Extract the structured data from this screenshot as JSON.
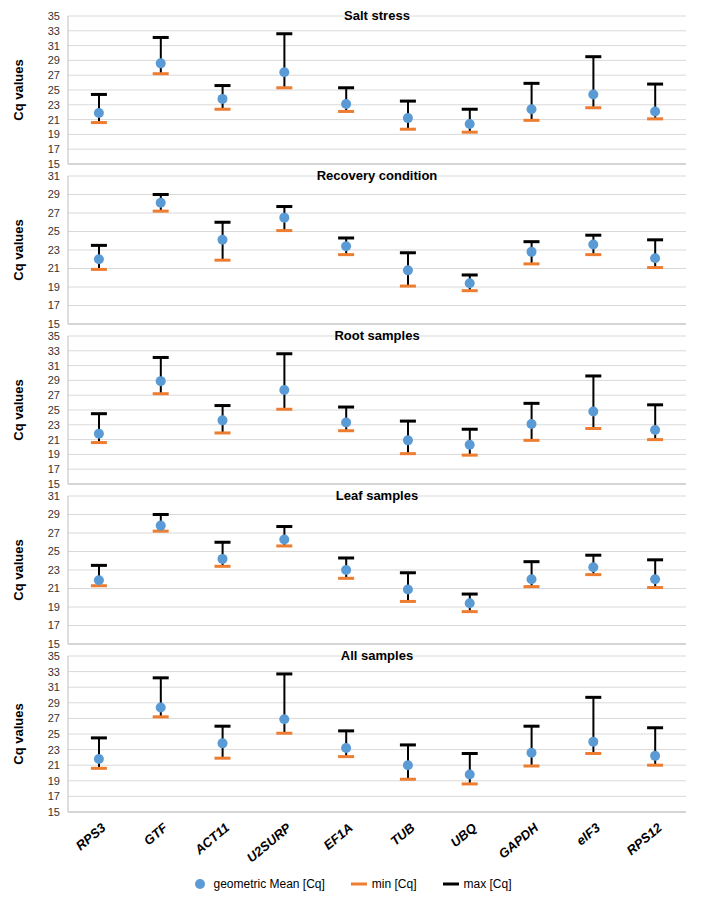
{
  "chart_data": [
    {
      "type": "scatter",
      "title": "Salt stress",
      "y_label": "Cq values",
      "categories": [
        "RPS3",
        "GTF",
        "ACT11",
        "U2SURP",
        "EF1A",
        "TUB",
        "UBQ",
        "GAPDH",
        "eIF3",
        "RPS12"
      ],
      "ylim": [
        15,
        35
      ],
      "yticks": [
        15,
        17,
        19,
        21,
        23,
        25,
        27,
        29,
        31,
        33,
        35
      ],
      "grid": true,
      "tick_labels": "y",
      "series": [
        {
          "name": "geometric Mean [Cq]",
          "color": "#5b9bd5",
          "marker": "circle",
          "values": [
            21.9,
            28.6,
            23.8,
            27.4,
            23.1,
            21.2,
            20.4,
            22.4,
            24.4,
            22.1
          ]
        },
        {
          "name": "min [Cq]",
          "color": "#ed7d31",
          "marker": "dash",
          "values": [
            20.6,
            27.2,
            22.4,
            25.3,
            22.1,
            19.7,
            19.3,
            20.9,
            22.6,
            21.1
          ]
        },
        {
          "name": "max [Cq]",
          "color": "#000000",
          "marker": "dash",
          "values": [
            24.4,
            32.1,
            25.6,
            32.6,
            25.3,
            23.5,
            22.4,
            25.9,
            29.5,
            25.8
          ]
        }
      ]
    },
    {
      "type": "scatter",
      "title": "Recovery condition",
      "y_label": "Cq values",
      "categories": [
        "RPS3",
        "GTF",
        "ACT11",
        "U2SURP",
        "EF1A",
        "TUB",
        "UBQ",
        "GAPDH",
        "eIF3",
        "RPS12"
      ],
      "ylim": [
        15,
        31
      ],
      "yticks": [
        15,
        17,
        19,
        21,
        23,
        25,
        27,
        29,
        31
      ],
      "grid": true,
      "tick_labels": "y",
      "series": [
        {
          "name": "geometric Mean [Cq]",
          "color": "#5b9bd5",
          "marker": "circle",
          "values": [
            22.0,
            28.1,
            24.1,
            26.5,
            23.4,
            20.8,
            19.4,
            22.8,
            23.6,
            22.1
          ]
        },
        {
          "name": "min [Cq]",
          "color": "#ed7d31",
          "marker": "dash",
          "values": [
            20.9,
            27.2,
            21.9,
            25.1,
            22.5,
            19.1,
            18.6,
            21.5,
            22.5,
            21.1
          ]
        },
        {
          "name": "max [Cq]",
          "color": "#000000",
          "marker": "dash",
          "values": [
            23.5,
            29.0,
            26.0,
            27.7,
            24.3,
            22.7,
            20.3,
            23.9,
            24.6,
            24.1
          ]
        }
      ]
    },
    {
      "type": "scatter",
      "title": "Root samples",
      "y_label": "Cq values",
      "categories": [
        "RPS3",
        "GTF",
        "ACT11",
        "U2SURP",
        "EF1A",
        "TUB",
        "UBQ",
        "GAPDH",
        "eIF3",
        "RPS12"
      ],
      "ylim": [
        15,
        35
      ],
      "yticks": [
        15,
        17,
        19,
        21,
        23,
        25,
        27,
        29,
        31,
        33,
        35
      ],
      "grid": true,
      "tick_labels": "y",
      "series": [
        {
          "name": "geometric Mean [Cq]",
          "color": "#5b9bd5",
          "marker": "circle",
          "values": [
            21.8,
            28.9,
            23.6,
            27.7,
            23.3,
            20.9,
            20.3,
            23.1,
            24.8,
            22.3
          ]
        },
        {
          "name": "min [Cq]",
          "color": "#ed7d31",
          "marker": "dash",
          "values": [
            20.6,
            27.2,
            21.9,
            25.1,
            22.2,
            19.1,
            18.9,
            20.9,
            22.5,
            21.0
          ]
        },
        {
          "name": "max [Cq]",
          "color": "#000000",
          "marker": "dash",
          "values": [
            24.5,
            32.1,
            25.6,
            32.6,
            25.4,
            23.5,
            22.4,
            25.9,
            29.6,
            25.7
          ]
        }
      ]
    },
    {
      "type": "scatter",
      "title": "Leaf  samples",
      "y_label": "Cq values",
      "categories": [
        "RPS3",
        "GTF",
        "ACT11",
        "U2SURP",
        "EF1A",
        "TUB",
        "UBQ",
        "GAPDH",
        "eIF3",
        "RPS12"
      ],
      "ylim": [
        15,
        31
      ],
      "yticks": [
        15,
        17,
        19,
        21,
        23,
        25,
        27,
        29,
        31
      ],
      "grid": true,
      "tick_labels": "y",
      "series": [
        {
          "name": "geometric Mean [Cq]",
          "color": "#5b9bd5",
          "marker": "circle",
          "values": [
            21.9,
            27.8,
            24.2,
            26.3,
            23.0,
            20.9,
            19.4,
            22.0,
            23.3,
            22.0
          ]
        },
        {
          "name": "min [Cq]",
          "color": "#ed7d31",
          "marker": "dash",
          "values": [
            21.3,
            27.2,
            23.4,
            25.6,
            22.1,
            19.6,
            18.5,
            21.2,
            22.5,
            21.1
          ]
        },
        {
          "name": "max [Cq]",
          "color": "#000000",
          "marker": "dash",
          "values": [
            23.5,
            29.0,
            26.0,
            27.7,
            24.3,
            22.7,
            20.4,
            23.9,
            24.6,
            24.1
          ]
        }
      ]
    },
    {
      "type": "scatter",
      "title": "All samples",
      "y_label": "Cq values",
      "categories": [
        "RPS3",
        "GTF",
        "ACT11",
        "U2SURP",
        "EF1A",
        "TUB",
        "UBQ",
        "GAPDH",
        "eIF3",
        "RPS12"
      ],
      "ylim": [
        15,
        35
      ],
      "yticks": [
        15,
        17,
        19,
        21,
        23,
        25,
        27,
        29,
        31,
        33,
        35
      ],
      "grid": true,
      "legend": "bottom",
      "series": [
        {
          "name": "geometric Mean [Cq]",
          "color": "#5b9bd5",
          "marker": "circle",
          "values": [
            21.8,
            28.4,
            23.8,
            26.9,
            23.2,
            21.0,
            19.8,
            22.6,
            24.0,
            22.2
          ]
        },
        {
          "name": "min [Cq]",
          "color": "#ed7d31",
          "marker": "dash",
          "values": [
            20.6,
            27.2,
            21.9,
            25.1,
            22.1,
            19.2,
            18.6,
            20.9,
            22.5,
            21.0
          ]
        },
        {
          "name": "max [Cq]",
          "color": "#000000",
          "marker": "dash",
          "values": [
            24.5,
            32.2,
            26.0,
            32.7,
            25.4,
            23.6,
            22.5,
            26.0,
            29.7,
            25.8
          ]
        }
      ]
    }
  ]
}
